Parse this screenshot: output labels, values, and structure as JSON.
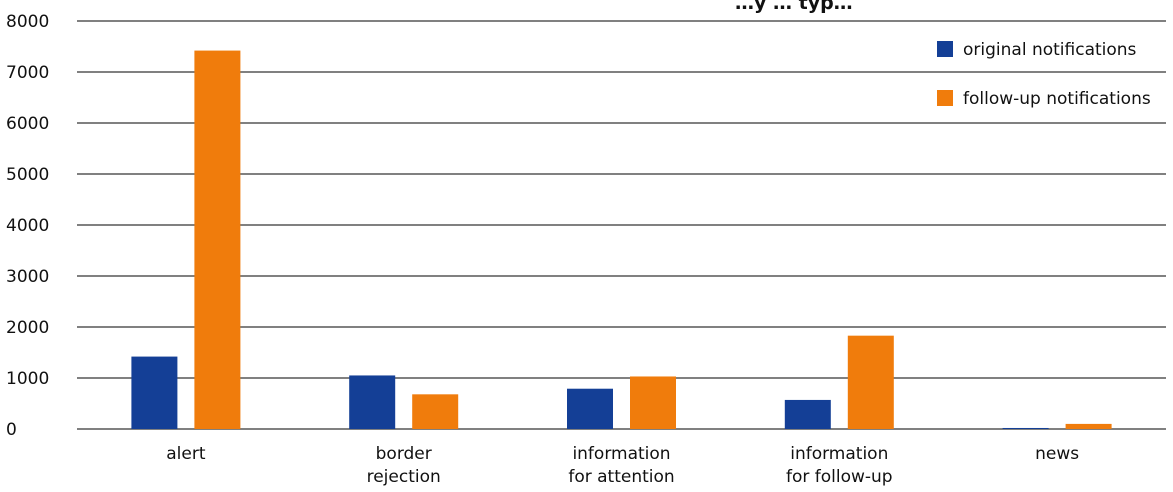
{
  "chart_data": {
    "type": "bar",
    "title": "…y … typ…",
    "categories": [
      [
        "alert"
      ],
      [
        "border",
        "rejection"
      ],
      [
        "information",
        "for attention"
      ],
      [
        "information",
        "for follow-up"
      ],
      [
        "news"
      ]
    ],
    "series": [
      {
        "name": "original notifications",
        "color": "#143f96",
        "values": [
          1420,
          1050,
          790,
          570,
          20
        ]
      },
      {
        "name": "follow-up notifications",
        "color": "#f07c0c",
        "values": [
          7420,
          680,
          1030,
          1830,
          100
        ]
      }
    ],
    "ylim": [
      0,
      8000
    ],
    "yticks": [
      0,
      1000,
      2000,
      3000,
      4000,
      5000,
      6000,
      7000,
      8000
    ],
    "grid": true,
    "legend_position": "top-right"
  }
}
